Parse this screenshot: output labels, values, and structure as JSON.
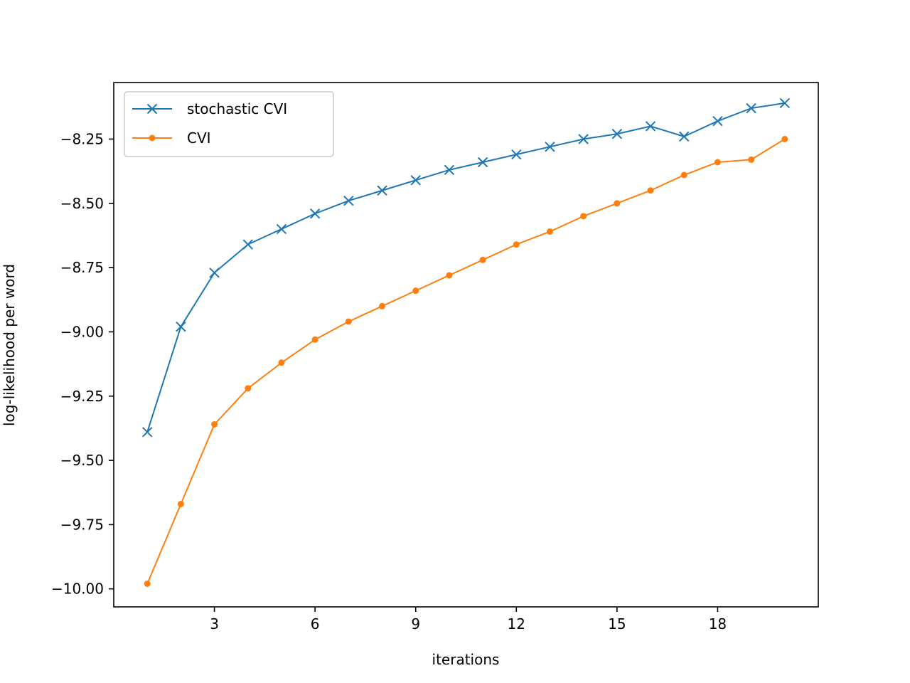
{
  "chart_data": {
    "type": "line",
    "xlabel": "iterations",
    "ylabel": "log-likelihood per word",
    "xlim": [
      0,
      21
    ],
    "ylim": [
      -10.07,
      -8.03
    ],
    "xticks": [
      3,
      6,
      9,
      12,
      15,
      18
    ],
    "yticks": [
      -10.0,
      -9.75,
      -9.5,
      -9.25,
      -9.0,
      -8.75,
      -8.5,
      -8.25
    ],
    "ytick_labels": [
      "−10.00",
      "−9.75",
      "−9.50",
      "−9.25",
      "−9.00",
      "−8.75",
      "−8.50",
      "−8.25"
    ],
    "xtick_labels": [
      "3",
      "6",
      "9",
      "12",
      "15",
      "18"
    ],
    "grid": false,
    "legend_position": "top-left",
    "x": [
      1,
      2,
      3,
      4,
      5,
      6,
      7,
      8,
      9,
      10,
      11,
      12,
      13,
      14,
      15,
      16,
      17,
      18,
      19,
      20
    ],
    "series": [
      {
        "name": "stochastic CVI",
        "color": "#1f77b4",
        "marker": "x",
        "values": [
          -9.39,
          -8.98,
          -8.77,
          -8.66,
          -8.6,
          -8.54,
          -8.49,
          -8.45,
          -8.41,
          -8.37,
          -8.34,
          -8.31,
          -8.28,
          -8.25,
          -8.23,
          -8.2,
          -8.24,
          -8.18,
          -8.13,
          -8.11
        ]
      },
      {
        "name": "CVI",
        "color": "#ff7f0e",
        "marker": "dot",
        "values": [
          -9.98,
          -9.67,
          -9.36,
          -9.22,
          -9.12,
          -9.03,
          -8.96,
          -8.9,
          -8.84,
          -8.78,
          -8.72,
          -8.66,
          -8.61,
          -8.55,
          -8.5,
          -8.45,
          -8.39,
          -8.34,
          -8.33,
          -8.25
        ]
      }
    ]
  }
}
